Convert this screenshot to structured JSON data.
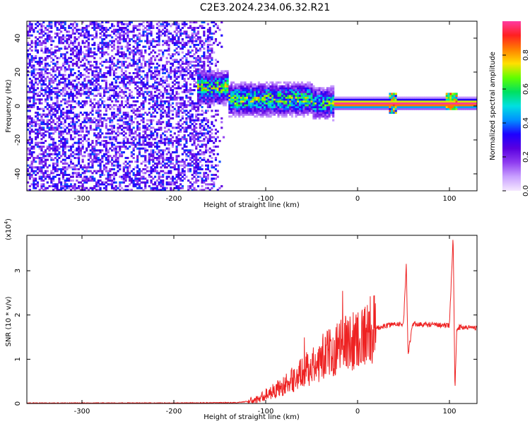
{
  "title": "C2E3.2024.234.06.32.R21",
  "chart_data": [
    {
      "type": "heatmap",
      "xlabel": "Height of straight line (km)",
      "ylabel": "Frequency (Hz)",
      "xlim": [
        -360,
        130
      ],
      "ylim": [
        -50,
        50
      ],
      "xticks": [
        -300,
        -200,
        -100,
        0,
        100
      ],
      "xtick_labels": [
        "-300",
        "-200",
        "-100",
        "0",
        "100"
      ],
      "yticks": [
        -40,
        -20,
        0,
        20,
        40
      ],
      "ytick_labels": [
        "-40",
        "-20",
        "0",
        "20",
        "40"
      ],
      "colorbar": {
        "label": "Normalized spectral amplitude",
        "range": [
          0,
          1
        ],
        "ticks": [
          0.0,
          0.2,
          0.4,
          0.6,
          0.8
        ],
        "tick_labels": [
          "0.0",
          "0.2",
          "0.4",
          "0.6",
          "0.8"
        ],
        "colormap": [
          "#f5e8ff",
          "#c9a0ff",
          "#8f3df0",
          "#5a00e0",
          "#1e00ff",
          "#0090ff",
          "#00e0e0",
          "#00e060",
          "#60ff00",
          "#ffe000",
          "#ff8000",
          "#ff2020",
          "#ff3aa0"
        ]
      },
      "features": {
        "noise_region_x": [
          -360,
          -145
        ],
        "noise_amplitude": 0.3,
        "signal_line_freq": 1.5,
        "signal_line_start": -175,
        "signal_band_segments": [
          {
            "x": [
              -175,
              -140
            ],
            "center": 11,
            "amplitude": 0.55
          },
          {
            "x": [
              -140,
              -50
            ],
            "center": 4,
            "amplitude": 0.55
          },
          {
            "x": [
              -50,
              -25
            ],
            "center": 2,
            "amplitude": 0.5
          },
          {
            "x": [
              -25,
              130
            ],
            "center": 1.5,
            "amplitude": 1.0
          }
        ]
      },
      "grid": false
    },
    {
      "type": "line",
      "xlabel": "Height of straight line (km)",
      "ylabel": "SNR (10 * v/v)",
      "multiplier_label": "(x10",
      "multiplier_exponent": "4",
      "multiplier_close": ")",
      "xlim": [
        -360,
        130
      ],
      "ylim": [
        0,
        3.8
      ],
      "xticks": [
        -300,
        -200,
        -100,
        0,
        100
      ],
      "xtick_labels": [
        "-300",
        "-200",
        "-100",
        "0",
        "100"
      ],
      "yticks": [
        0,
        1,
        2,
        3
      ],
      "ytick_labels": [
        "0",
        "1",
        "2",
        "3"
      ],
      "color": "#ee2222",
      "series": [
        {
          "x": [
            -360,
            -300,
            -200,
            -130,
            -110,
            -100,
            -90,
            -80,
            -70,
            -60,
            -50,
            -40,
            -30,
            -20,
            -10,
            0,
            10,
            20,
            30,
            40,
            50,
            53,
            55,
            60,
            70,
            80,
            90,
            100,
            104,
            106,
            108,
            110,
            120,
            130
          ],
          "values": [
            0.01,
            0.01,
            0.01,
            0.02,
            0.08,
            0.2,
            0.3,
            0.4,
            0.55,
            0.7,
            0.85,
            1.0,
            1.15,
            1.3,
            1.4,
            1.5,
            1.6,
            1.7,
            1.75,
            1.8,
            1.8,
            3.1,
            1.1,
            1.8,
            1.78,
            1.78,
            1.78,
            1.75,
            3.8,
            0.3,
            1.7,
            1.72,
            1.72,
            1.72
          ]
        }
      ],
      "grid": false
    }
  ]
}
